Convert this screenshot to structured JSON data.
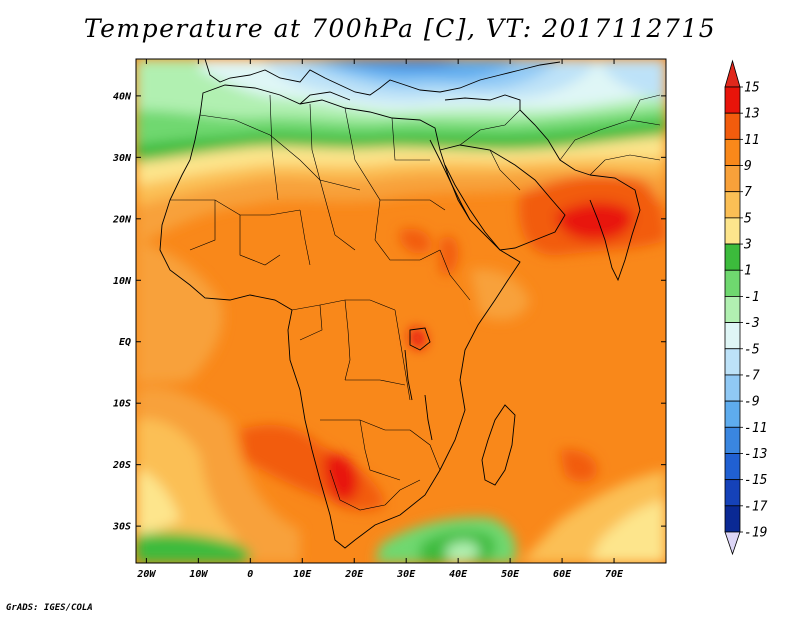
{
  "title": "Temperature at 700hPa [C], VT: 2017112715",
  "credit": "GrADS: IGES/COLA",
  "map": {
    "lon_range": [
      -22,
      80
    ],
    "lat_range": [
      -36,
      46
    ],
    "lat_ticks": [
      {
        "value": 40,
        "label": "40N"
      },
      {
        "value": 30,
        "label": "30N"
      },
      {
        "value": 20,
        "label": "20N"
      },
      {
        "value": 10,
        "label": "10N"
      },
      {
        "value": 0,
        "label": "EQ"
      },
      {
        "value": -10,
        "label": "10S"
      },
      {
        "value": -20,
        "label": "20S"
      },
      {
        "value": -30,
        "label": "30S"
      }
    ],
    "lon_ticks": [
      {
        "value": -20,
        "label": "20W"
      },
      {
        "value": -10,
        "label": "10W"
      },
      {
        "value": 0,
        "label": "0"
      },
      {
        "value": 10,
        "label": "10E"
      },
      {
        "value": 20,
        "label": "20E"
      },
      {
        "value": 30,
        "label": "30E"
      },
      {
        "value": 40,
        "label": "40E"
      },
      {
        "value": 50,
        "label": "50E"
      },
      {
        "value": 60,
        "label": "60E"
      },
      {
        "value": 70,
        "label": "70E"
      }
    ]
  },
  "colorbar": {
    "levels": [
      "15",
      "13",
      "11",
      "9",
      "7",
      "5",
      "3",
      "1",
      "-1",
      "-3",
      "-5",
      "-7",
      "-9",
      "-11",
      "-13",
      "-15",
      "-17",
      "-19"
    ],
    "colors": [
      "#e8140a",
      "#f25c0d",
      "#f9881a",
      "#f8a13a",
      "#fbbf55",
      "#fde58c",
      "#3cbb3c",
      "#6fd86f",
      "#b1f0b1",
      "#dff6f6",
      "#bde2f8",
      "#90c9f5",
      "#5eacee",
      "#3a86e0",
      "#2060d2",
      "#1542b9",
      "#0a2994",
      "#0c0f6a"
    ],
    "top_color": "#e0281c",
    "bottom_color": "#ddd6f7"
  }
}
